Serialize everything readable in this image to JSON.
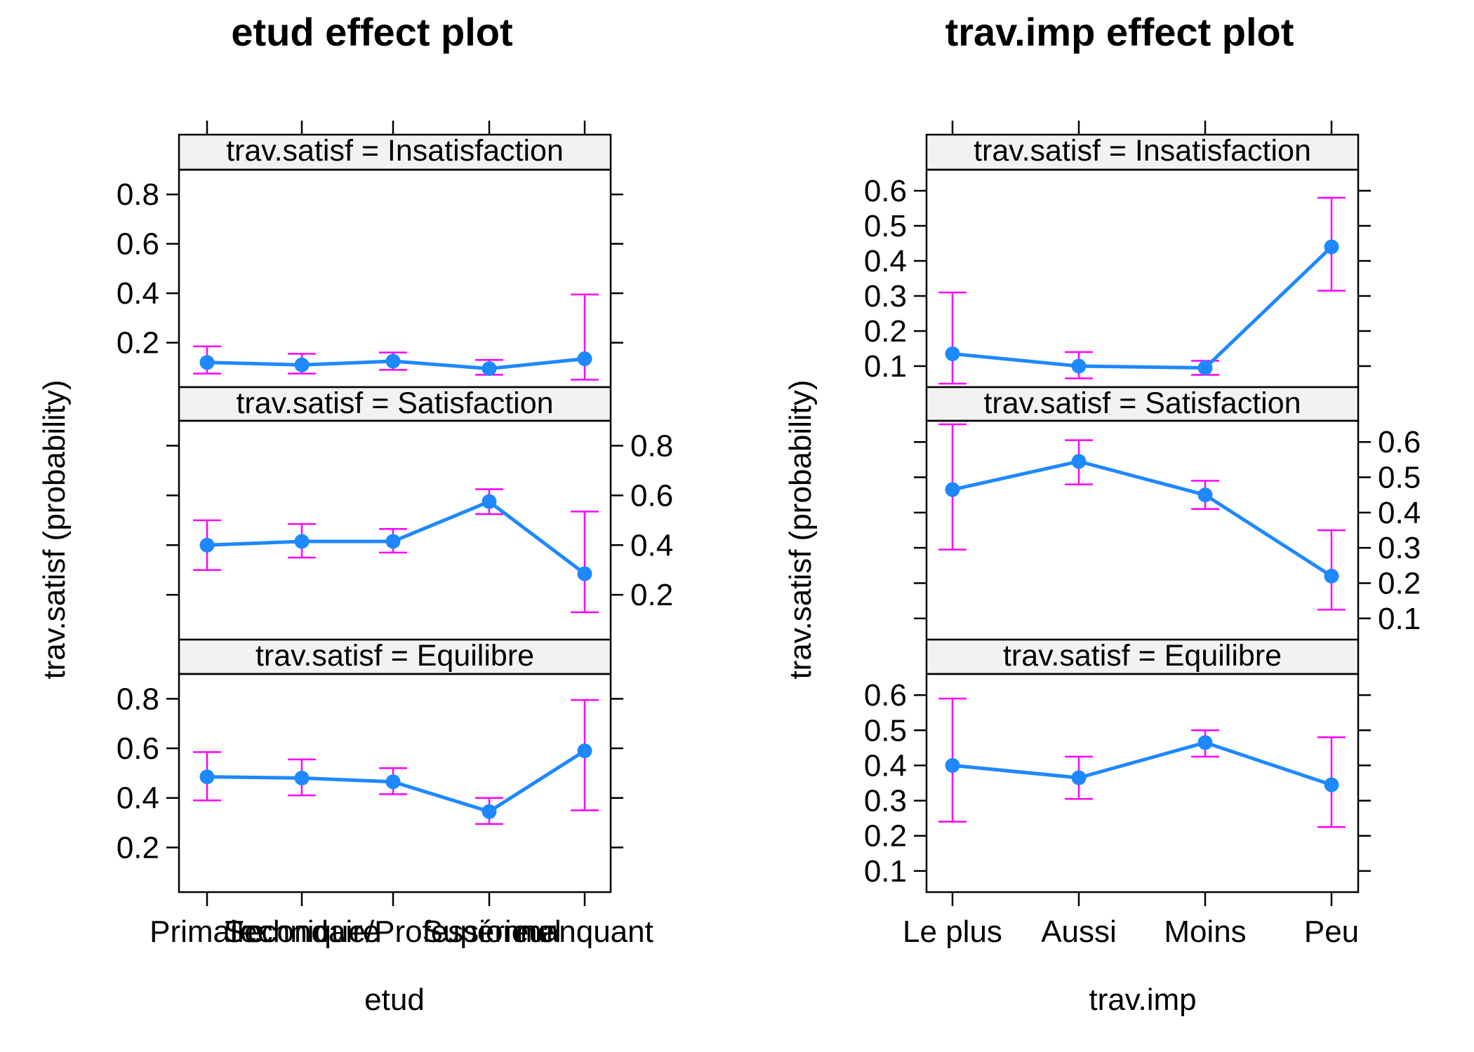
{
  "colors": {
    "line": "#1E88FF",
    "error": "#FF00FF",
    "strip": "#F2F2F2"
  },
  "chart_data": [
    {
      "type": "line",
      "title": "etud effect plot",
      "xlabel": "etud",
      "ylabel": "trav.satisf (probability)",
      "categories": [
        "Primaire",
        "Secondaire",
        "Technique/Professionnel",
        "Supérieur",
        "manquant"
      ],
      "ylim": [
        0.02,
        0.9
      ],
      "yticks": [
        "0.2",
        "0.4",
        "0.6",
        "0.8"
      ],
      "panels": [
        {
          "strip": "trav.satisf = Insatisfaction",
          "yaxis": "left",
          "values": [
            0.12,
            0.11,
            0.125,
            0.095,
            0.135
          ],
          "lower": [
            0.075,
            0.075,
            0.09,
            0.07,
            0.05
          ],
          "upper": [
            0.185,
            0.155,
            0.16,
            0.13,
            0.395
          ]
        },
        {
          "strip": "trav.satisf = Satisfaction",
          "yaxis": "right",
          "values": [
            0.4,
            0.415,
            0.415,
            0.575,
            0.285
          ],
          "lower": [
            0.3,
            0.35,
            0.37,
            0.525,
            0.13
          ],
          "upper": [
            0.5,
            0.485,
            0.465,
            0.625,
            0.535
          ]
        },
        {
          "strip": "trav.satisf = Equilibre",
          "yaxis": "left",
          "values": [
            0.485,
            0.48,
            0.465,
            0.345,
            0.59
          ],
          "lower": [
            0.39,
            0.41,
            0.415,
            0.295,
            0.35
          ],
          "upper": [
            0.585,
            0.555,
            0.52,
            0.4,
            0.795
          ]
        }
      ]
    },
    {
      "type": "line",
      "title": "trav.imp effect plot",
      "xlabel": "trav.imp",
      "ylabel": "trav.satisf (probability)",
      "categories": [
        "Le plus",
        "Aussi",
        "Moins",
        "Peu"
      ],
      "ylim": [
        0.04,
        0.66
      ],
      "yticks": [
        "0.1",
        "0.2",
        "0.3",
        "0.4",
        "0.5",
        "0.6"
      ],
      "panels": [
        {
          "strip": "trav.satisf = Insatisfaction",
          "yaxis": "left",
          "values": [
            0.135,
            0.1,
            0.095,
            0.44
          ],
          "lower": [
            0.05,
            0.065,
            0.075,
            0.315
          ],
          "upper": [
            0.31,
            0.14,
            0.115,
            0.58
          ]
        },
        {
          "strip": "trav.satisf = Satisfaction",
          "yaxis": "right",
          "values": [
            0.465,
            0.545,
            0.45,
            0.22
          ],
          "lower": [
            0.295,
            0.48,
            0.41,
            0.125
          ],
          "upper": [
            0.65,
            0.605,
            0.49,
            0.35
          ]
        },
        {
          "strip": "trav.satisf = Equilibre",
          "yaxis": "left",
          "values": [
            0.4,
            0.365,
            0.465,
            0.345
          ],
          "lower": [
            0.24,
            0.305,
            0.425,
            0.225
          ],
          "upper": [
            0.59,
            0.425,
            0.5,
            0.48
          ]
        }
      ]
    }
  ]
}
